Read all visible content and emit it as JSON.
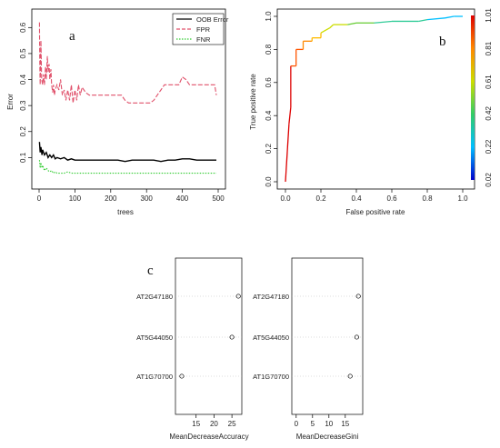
{
  "chart_data": [
    {
      "id": "a",
      "panel_label": "a",
      "type": "line",
      "xlabel": "trees",
      "ylabel": "Error",
      "xlim": [
        0,
        500
      ],
      "ylim": [
        0,
        0.65
      ],
      "xticks": [
        "0",
        "100",
        "200",
        "300",
        "400",
        "500"
      ],
      "xtick_values": [
        0,
        100,
        200,
        300,
        400,
        500
      ],
      "yticks": [
        "0.1",
        "0.2",
        "0.3",
        "0.4",
        "0.5",
        "0.6"
      ],
      "ytick_values": [
        0.1,
        0.2,
        0.3,
        0.4,
        0.5,
        0.6
      ],
      "legend_position": "top-right",
      "series": [
        {
          "name": "OOB Error",
          "color": "#000000",
          "style": "solid",
          "x": [
            1,
            3,
            5,
            8,
            10,
            15,
            20,
            25,
            30,
            35,
            40,
            45,
            50,
            60,
            70,
            80,
            90,
            100,
            120,
            140,
            160,
            180,
            200,
            220,
            240,
            260,
            280,
            300,
            320,
            340,
            360,
            380,
            400,
            420,
            440,
            460,
            480,
            495
          ],
          "y": [
            0.16,
            0.12,
            0.14,
            0.11,
            0.13,
            0.11,
            0.12,
            0.1,
            0.11,
            0.1,
            0.11,
            0.095,
            0.1,
            0.095,
            0.1,
            0.09,
            0.095,
            0.09,
            0.09,
            0.09,
            0.09,
            0.09,
            0.09,
            0.09,
            0.085,
            0.09,
            0.09,
            0.09,
            0.09,
            0.085,
            0.09,
            0.09,
            0.095,
            0.095,
            0.09,
            0.09,
            0.09,
            0.09
          ]
        },
        {
          "name": "FPR",
          "color": "#e0506a",
          "style": "dashed",
          "x": [
            1,
            2,
            3,
            5,
            7,
            10,
            12,
            15,
            18,
            20,
            23,
            25,
            28,
            30,
            33,
            35,
            38,
            40,
            43,
            45,
            50,
            55,
            60,
            65,
            70,
            75,
            80,
            85,
            90,
            95,
            100,
            105,
            110,
            115,
            120,
            130,
            140,
            150,
            170,
            190,
            210,
            230,
            240,
            250,
            260,
            270,
            290,
            310,
            320,
            330,
            340,
            350,
            360,
            380,
            390,
            400,
            410,
            420,
            440,
            460,
            480,
            490,
            495
          ],
          "y": [
            0.62,
            0.45,
            0.38,
            0.55,
            0.4,
            0.38,
            0.42,
            0.38,
            0.45,
            0.4,
            0.49,
            0.43,
            0.46,
            0.4,
            0.44,
            0.38,
            0.35,
            0.38,
            0.34,
            0.36,
            0.38,
            0.36,
            0.4,
            0.34,
            0.36,
            0.32,
            0.36,
            0.32,
            0.38,
            0.31,
            0.36,
            0.32,
            0.38,
            0.34,
            0.37,
            0.35,
            0.34,
            0.34,
            0.34,
            0.34,
            0.34,
            0.34,
            0.32,
            0.31,
            0.31,
            0.31,
            0.31,
            0.31,
            0.32,
            0.34,
            0.36,
            0.38,
            0.38,
            0.38,
            0.38,
            0.41,
            0.4,
            0.38,
            0.38,
            0.38,
            0.38,
            0.38,
            0.34
          ]
        },
        {
          "name": "FNR",
          "color": "#33cc33",
          "style": "dotted",
          "x": [
            1,
            3,
            5,
            8,
            10,
            15,
            20,
            25,
            30,
            35,
            40,
            45,
            50,
            60,
            70,
            80,
            90,
            100,
            150,
            200,
            250,
            300,
            350,
            400,
            450,
            495
          ],
          "y": [
            0.09,
            0.06,
            0.08,
            0.06,
            0.07,
            0.05,
            0.06,
            0.05,
            0.045,
            0.05,
            0.04,
            0.045,
            0.04,
            0.04,
            0.04,
            0.045,
            0.04,
            0.04,
            0.04,
            0.04,
            0.04,
            0.04,
            0.04,
            0.04,
            0.04,
            0.04
          ]
        }
      ]
    },
    {
      "id": "b",
      "panel_label": "b",
      "type": "line",
      "xlabel": "False positive rate",
      "ylabel": "True positive rate",
      "xlim": [
        0,
        1
      ],
      "ylim": [
        0,
        1
      ],
      "xticks": [
        "0.0",
        "0.2",
        "0.4",
        "0.6",
        "0.8",
        "1.0"
      ],
      "xtick_values": [
        0,
        0.2,
        0.4,
        0.6,
        0.8,
        1.0
      ],
      "yticks": [
        "0.0",
        "0.2",
        "0.4",
        "0.6",
        "0.8",
        "1.0"
      ],
      "ytick_values": [
        0,
        0.2,
        0.4,
        0.6,
        0.8,
        1.0
      ],
      "colorbar_labels": [
        "1.01",
        "0.81",
        "0.61",
        "0.42",
        "0.22",
        "0.02"
      ],
      "colorbar_values": [
        1.01,
        0.81,
        0.61,
        0.42,
        0.22,
        0.02
      ],
      "series": [
        {
          "x": [
            0.0,
            0.02,
            0.03,
            0.03,
            0.06,
            0.06,
            0.1,
            0.1,
            0.15,
            0.15,
            0.2,
            0.2,
            0.25,
            0.27,
            0.35,
            0.4,
            0.5,
            0.6,
            0.75,
            0.8,
            0.9,
            0.95,
            1.0
          ],
          "y": [
            0.0,
            0.35,
            0.45,
            0.7,
            0.7,
            0.8,
            0.8,
            0.85,
            0.85,
            0.87,
            0.87,
            0.9,
            0.93,
            0.95,
            0.95,
            0.96,
            0.96,
            0.97,
            0.97,
            0.98,
            0.99,
            1.0,
            1.0
          ]
        }
      ]
    },
    {
      "id": "c1",
      "panel_label": "c",
      "type": "scatter",
      "xlabel": "MeanDecreaseAccuracy",
      "xlim": [
        10,
        27
      ],
      "xticks": [
        "15",
        "20",
        "25"
      ],
      "xtick_values": [
        15,
        20,
        25
      ],
      "categories": [
        "AT2G47180",
        "AT5G44050",
        "AT1G70700"
      ],
      "values": [
        26.8,
        25,
        11
      ]
    },
    {
      "id": "c2",
      "type": "scatter",
      "xlabel": "MeanDecreaseGini",
      "xlim": [
        -0.5,
        19.5
      ],
      "xticks": [
        "0",
        "5",
        "10",
        "15"
      ],
      "xtick_values": [
        0,
        5,
        10,
        15
      ],
      "categories": [
        "AT2G47180",
        "AT5G44050",
        "AT1G70700"
      ],
      "values": [
        19,
        18.5,
        16.5
      ]
    }
  ]
}
